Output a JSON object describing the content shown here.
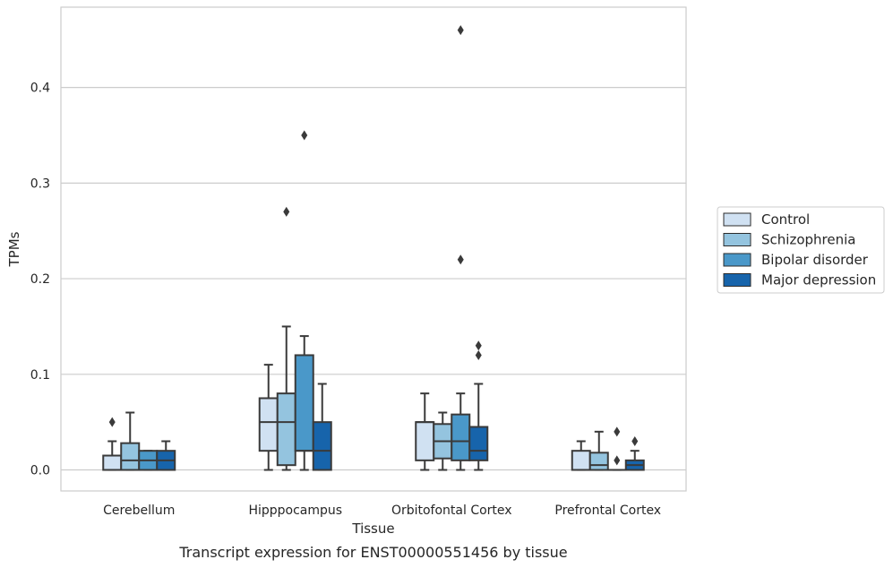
{
  "chart_data": {
    "type": "boxplot",
    "title": "Transcript expression for ENST00000551456 by tissue",
    "xlabel": "Tissue",
    "ylabel": "TPMs",
    "ylim": [
      -0.022,
      0.484
    ],
    "yticks": [
      0.0,
      0.1,
      0.2,
      0.3,
      0.4
    ],
    "ytick_labels": [
      "0.0",
      "0.1",
      "0.2",
      "0.3",
      "0.4"
    ],
    "grid": true,
    "legend_position": "right",
    "categories": [
      "Cerebellum",
      "Hipppocampus",
      "Orbitofontal Cortex",
      "Prefrontal Cortex"
    ],
    "series": [
      {
        "name": "Control",
        "color": "#d0e1f2",
        "boxes": [
          {
            "q1": 0.0,
            "median": 0.0,
            "q3": 0.015,
            "whisker_low": 0.0,
            "whisker_high": 0.03,
            "outliers": [
              0.05
            ]
          },
          {
            "q1": 0.02,
            "median": 0.05,
            "q3": 0.075,
            "whisker_low": 0.0,
            "whisker_high": 0.11,
            "outliers": []
          },
          {
            "q1": 0.01,
            "median": 0.05,
            "q3": 0.05,
            "whisker_low": 0.0,
            "whisker_high": 0.08,
            "outliers": []
          },
          {
            "q1": 0.0,
            "median": 0.0,
            "q3": 0.02,
            "whisker_low": 0.0,
            "whisker_high": 0.03,
            "outliers": []
          }
        ]
      },
      {
        "name": "Schizophrenia",
        "color": "#94c4df",
        "boxes": [
          {
            "q1": 0.0,
            "median": 0.01,
            "q3": 0.028,
            "whisker_low": 0.0,
            "whisker_high": 0.06,
            "outliers": []
          },
          {
            "q1": 0.005,
            "median": 0.05,
            "q3": 0.08,
            "whisker_low": 0.0,
            "whisker_high": 0.15,
            "outliers": [
              0.27
            ]
          },
          {
            "q1": 0.012,
            "median": 0.03,
            "q3": 0.048,
            "whisker_low": 0.0,
            "whisker_high": 0.06,
            "outliers": []
          },
          {
            "q1": 0.0,
            "median": 0.005,
            "q3": 0.018,
            "whisker_low": 0.0,
            "whisker_high": 0.04,
            "outliers": []
          }
        ]
      },
      {
        "name": "Bipolar disorder",
        "color": "#4a98c9",
        "boxes": [
          {
            "q1": 0.0,
            "median": 0.01,
            "q3": 0.02,
            "whisker_low": 0.0,
            "whisker_high": 0.02,
            "outliers": []
          },
          {
            "q1": 0.02,
            "median": 0.02,
            "q3": 0.12,
            "whisker_low": 0.0,
            "whisker_high": 0.14,
            "outliers": [
              0.35
            ]
          },
          {
            "q1": 0.01,
            "median": 0.03,
            "q3": 0.058,
            "whisker_low": 0.0,
            "whisker_high": 0.08,
            "outliers": [
              0.46,
              0.22
            ]
          },
          {
            "q1": 0.0,
            "median": 0.0,
            "q3": 0.0,
            "whisker_low": 0.0,
            "whisker_high": 0.0,
            "outliers": [
              0.04,
              0.01
            ]
          }
        ]
      },
      {
        "name": "Major depression",
        "color": "#1764ab",
        "boxes": [
          {
            "q1": 0.0,
            "median": 0.01,
            "q3": 0.02,
            "whisker_low": 0.0,
            "whisker_high": 0.03,
            "outliers": []
          },
          {
            "q1": 0.0,
            "median": 0.02,
            "q3": 0.05,
            "whisker_low": 0.0,
            "whisker_high": 0.09,
            "outliers": []
          },
          {
            "q1": 0.01,
            "median": 0.02,
            "q3": 0.045,
            "whisker_low": 0.0,
            "whisker_high": 0.09,
            "outliers": [
              0.13,
              0.12
            ]
          },
          {
            "q1": 0.0,
            "median": 0.005,
            "q3": 0.01,
            "whisker_low": 0.0,
            "whisker_high": 0.02,
            "outliers": [
              0.03
            ]
          }
        ]
      }
    ]
  }
}
